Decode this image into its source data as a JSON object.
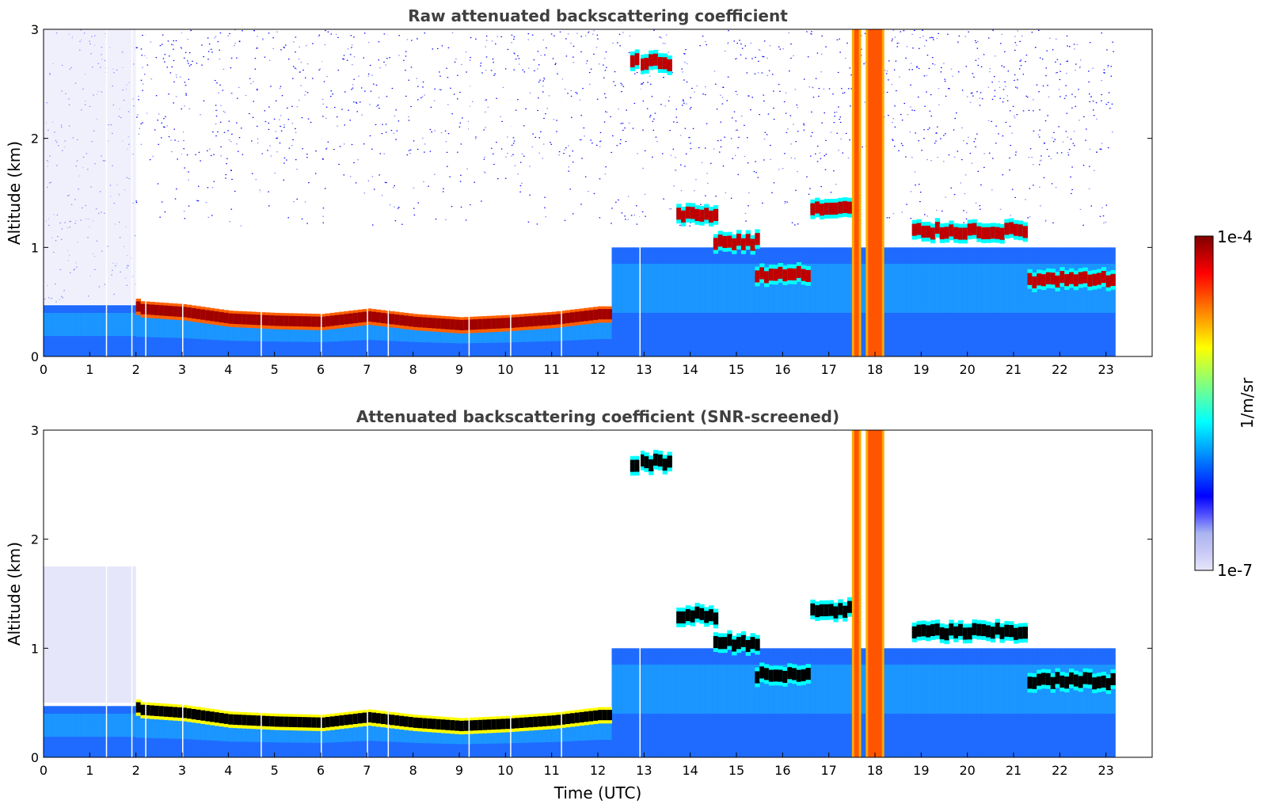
{
  "chart_data": [
    {
      "type": "heatmap",
      "title": "Raw attenuated backscattering coefficient",
      "xlabel": "",
      "ylabel": "Altitude (km)",
      "xlim": [
        0,
        24
      ],
      "ylim": [
        0,
        3
      ],
      "xticks": [
        0,
        1,
        2,
        3,
        4,
        5,
        6,
        7,
        8,
        9,
        10,
        11,
        12,
        13,
        14,
        15,
        16,
        17,
        18,
        19,
        20,
        21,
        22,
        23
      ],
      "yticks": [
        0,
        1,
        2,
        3
      ],
      "data_end_time": 23.15,
      "color_scale": "log",
      "colormap": "jet",
      "range": [
        1e-07,
        0.0001
      ],
      "features": {
        "boundary_layer_top": [
          [
            2.0,
            0.45
          ],
          [
            3,
            0.42
          ],
          [
            4,
            0.36
          ],
          [
            5,
            0.34
          ],
          [
            6,
            0.33
          ],
          [
            7,
            0.38
          ],
          [
            8,
            0.33
          ],
          [
            9,
            0.3
          ],
          [
            10,
            0.32
          ],
          [
            11,
            0.35
          ],
          [
            12,
            0.4
          ]
        ],
        "cloud_layers": [
          {
            "t": [
              12.7,
              13.5
            ],
            "alt": 2.7
          },
          {
            "t": [
              13.7,
              14.5
            ],
            "alt": 1.3
          },
          {
            "t": [
              14.5,
              15.4
            ],
            "alt": 1.05
          },
          {
            "t": [
              15.4,
              16.6
            ],
            "alt": 0.75
          },
          {
            "t": [
              16.6,
              17.5
            ],
            "alt": 1.35
          },
          {
            "t": [
              18.8,
              21.3
            ],
            "alt": 1.15
          },
          {
            "t": [
              21.3,
              23.15
            ],
            "alt": 0.7
          }
        ],
        "precipitation": [
          [
            17.5,
            17.7
          ],
          [
            17.8,
            18.2
          ]
        ]
      }
    },
    {
      "type": "heatmap",
      "title": "Attenuated backscattering coefficient (SNR-screened)",
      "xlabel": "Time (UTC)",
      "ylabel": "Altitude (km)",
      "xlim": [
        0,
        24
      ],
      "ylim": [
        0,
        3
      ],
      "xticks": [
        0,
        1,
        2,
        3,
        4,
        5,
        6,
        7,
        8,
        9,
        10,
        11,
        12,
        13,
        14,
        15,
        16,
        17,
        18,
        19,
        20,
        21,
        22,
        23
      ],
      "yticks": [
        0,
        1,
        2,
        3
      ],
      "data_end_time": 23.15,
      "color_scale": "log",
      "colormap": "jet",
      "range": [
        1e-07,
        0.0001
      ],
      "saturated_color": "#000000"
    }
  ],
  "colorbar": {
    "label": "1/m/sr",
    "max_label": "1e-4",
    "min_label": "1e-7",
    "colors": [
      "#e6e6fa",
      "#c8c8f5",
      "#aab4f0",
      "#5050ff",
      "#0000ff",
      "#0040ff",
      "#0080ff",
      "#00bfff",
      "#00ffff",
      "#40ffbf",
      "#80ff80",
      "#bfff40",
      "#ffff00",
      "#ffbf00",
      "#ff8000",
      "#ff4000",
      "#ff0000",
      "#bf0000",
      "#800000"
    ]
  }
}
